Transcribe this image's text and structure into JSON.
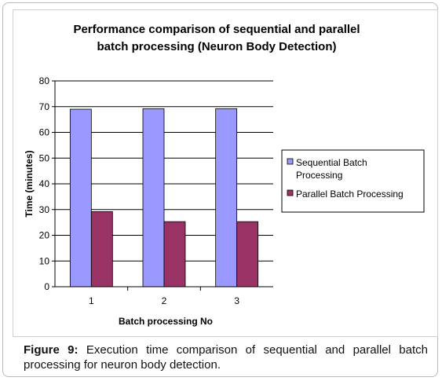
{
  "chart_data": {
    "type": "bar",
    "title_lines": [
      "Performance comparison of sequential and parallel",
      "batch processing (Neuron Body Detection)"
    ],
    "xlabel": "Batch processing No",
    "ylabel": "Time (minutes)",
    "categories": [
      "1",
      "2",
      "3"
    ],
    "ylim": [
      0,
      80
    ],
    "yticks": [
      "0",
      "10",
      "20",
      "30",
      "40",
      "50",
      "60",
      "70",
      "80"
    ],
    "grid": "horizontal",
    "legend_position": "right",
    "series": [
      {
        "name_lines": [
          "Sequential Batch",
          "Processing"
        ],
        "color": "#9999ff",
        "values": [
          69,
          69.2,
          69.2
        ]
      },
      {
        "name_lines": [
          "Parallel Batch Processing"
        ],
        "color": "#993366",
        "values": [
          29.2,
          25.3,
          25.3
        ]
      }
    ]
  },
  "caption": {
    "label": "Figure 9:",
    "text": " Execution time comparison of sequential and parallel batch processing for neuron body detection."
  }
}
